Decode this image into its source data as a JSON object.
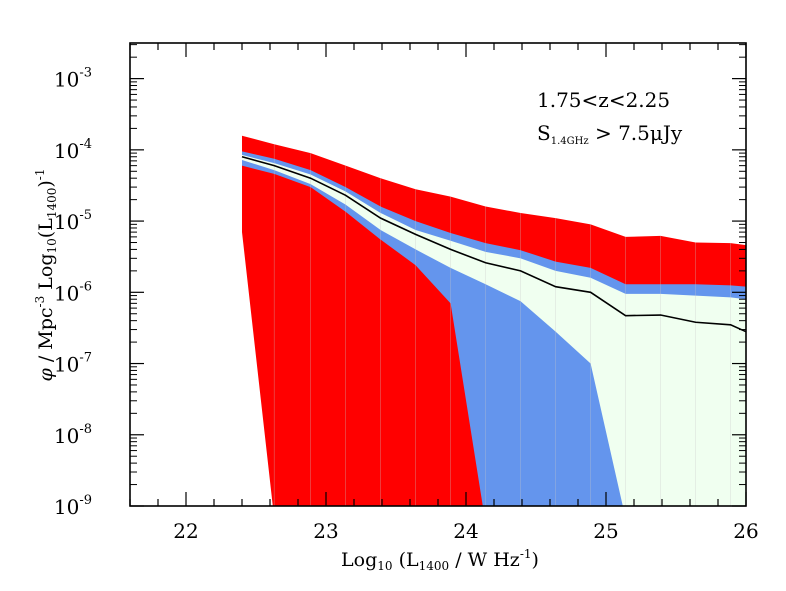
{
  "chart_data": {
    "type": "area",
    "xlabel_main": "Log",
    "xlabel_sub": "10",
    "xlabel_rest": " (L",
    "xlabel_sub2": "1400",
    "xlabel_end": " / W Hz",
    "xlabel_sup": "-1",
    "xlabel_close": ")",
    "ylabel_phi": "φ",
    "ylabel_mid": " / Mpc",
    "ylabel_sup": "-3",
    "ylabel_log": " Log",
    "ylabel_sub": "10",
    "ylabel_open": "(L",
    "ylabel_sub2": "1400",
    "ylabel_close": ")",
    "ylabel_sup2": "-1",
    "annotation_line1": "1.75<z<2.25",
    "annotation_line2_S": "S",
    "annotation_line2_sub": "1.4GHz",
    "annotation_line2_rest": " > 7.5μJy",
    "xlim": [
      21.6,
      26.0
    ],
    "ylim_log10": [
      -9.0,
      -2.5
    ],
    "yscale": "log",
    "x_ticks": [
      22,
      23,
      24,
      25,
      26
    ],
    "y_tick_labels": [
      {
        "base": "10",
        "exp": "-3",
        "log": -3
      },
      {
        "base": "10",
        "exp": "-4",
        "log": -4
      },
      {
        "base": "10",
        "exp": "-5",
        "log": -5
      },
      {
        "base": "10",
        "exp": "-6",
        "log": -6
      },
      {
        "base": "10",
        "exp": "-7",
        "log": -7
      },
      {
        "base": "10",
        "exp": "-8",
        "log": -8
      },
      {
        "base": "10",
        "exp": "-9",
        "log": -9
      }
    ],
    "colors": {
      "outer_band": "#ff0000",
      "middle_band": "#6495ed",
      "inner_band": "#f0fff0",
      "median_line": "#000000",
      "vertical_lines": "#c8c8c8"
    },
    "x": [
      22.4,
      22.63,
      22.89,
      23.14,
      23.39,
      23.64,
      23.89,
      24.14,
      24.39,
      24.64,
      24.89,
      25.14,
      25.39,
      25.64,
      25.89,
      26.0
    ],
    "median": [
      8e-05,
      6e-05,
      4e-05,
      2.3e-05,
      1.1e-05,
      6.5e-06,
      4e-06,
      2.6e-06,
      2e-06,
      1.2e-06,
      1e-06,
      4.7e-07,
      4.8e-07,
      3.8e-07,
      3.5e-07,
      2.8e-07
    ],
    "outer_upper": [
      0.000158,
      0.00012,
      9e-05,
      6e-05,
      4e-05,
      2.8e-05,
      2.2e-05,
      1.6e-05,
      1.3e-05,
      1.1e-05,
      9e-06,
      6e-06,
      6.2e-06,
      5e-06,
      4.9e-06,
      4.6e-06
    ],
    "outer_lower": [
      7e-06,
      1e-09,
      1e-09,
      1e-09,
      1e-09,
      1e-09,
      1e-09,
      1e-09,
      1e-09,
      1e-09,
      1e-09,
      1e-09,
      1e-09,
      1e-09,
      1e-09,
      1e-09
    ],
    "middle_upper": [
      9.5e-05,
      7.5e-05,
      5.2e-05,
      3e-05,
      1.6e-05,
      1e-05,
      6.8e-06,
      4.9e-06,
      3.9e-06,
      2.7e-06,
      2.2e-06,
      1.3e-06,
      1.3e-06,
      1.3e-06,
      1.25e-06,
      1.2e-06
    ],
    "middle_lower": [
      6.5e-05,
      4.5e-05,
      2.8e-05,
      1.3e-05,
      5e-06,
      2.2e-06,
      1e-06,
      7.5e-07,
      5e-07,
      2.2e-08,
      1e-09,
      1e-09,
      1e-09,
      1e-09,
      1e-09,
      1e-09
    ],
    "inner_upper": [
      8.5e-05,
      6.5e-05,
      4.5e-05,
      2.6e-05,
      1.3e-05,
      7.5e-06,
      5.3e-06,
      3.7e-06,
      3e-06,
      2e-06,
      1.6e-06,
      9.5e-07,
      9.5e-07,
      9e-07,
      8.5e-07,
      8e-07
    ],
    "inner_lower": [
      7.5e-05,
      5.5e-05,
      3.6e-05,
      2e-05,
      9e-06,
      5e-06,
      3e-06,
      2e-06,
      1.4e-06,
      8e-07,
      5e-07,
      1e-09,
      1e-09,
      1e-09,
      1e-09,
      1e-09
    ],
    "red_lower_profile": [
      {
        "x": 22.4,
        "y": 7e-06
      },
      {
        "x": 22.4,
        "y": 6e-05
      },
      {
        "x": 22.63,
        "y": 4.6e-05
      },
      {
        "x": 22.89,
        "y": 3e-05
      },
      {
        "x": 23.14,
        "y": 1.35e-05
      },
      {
        "x": 23.39,
        "y": 5.5e-06
      },
      {
        "x": 23.64,
        "y": 2.4e-06
      },
      {
        "x": 23.89,
        "y": 7.5e-07
      },
      {
        "x": 23.89,
        "y": 7e-07
      },
      {
        "x": 24.12,
        "y": 1e-09
      }
    ],
    "blue_lower_profile": [
      {
        "x": 23.89,
        "y": 7.5e-07
      },
      {
        "x": 24.14,
        "y": 1.3e-06
      },
      {
        "x": 24.39,
        "y": 7.5e-07
      },
      {
        "x": 24.64,
        "y": 2.8e-07
      },
      {
        "x": 24.89,
        "y": 1e-07
      },
      {
        "x": 25.12,
        "y": 1e-09
      }
    ]
  }
}
